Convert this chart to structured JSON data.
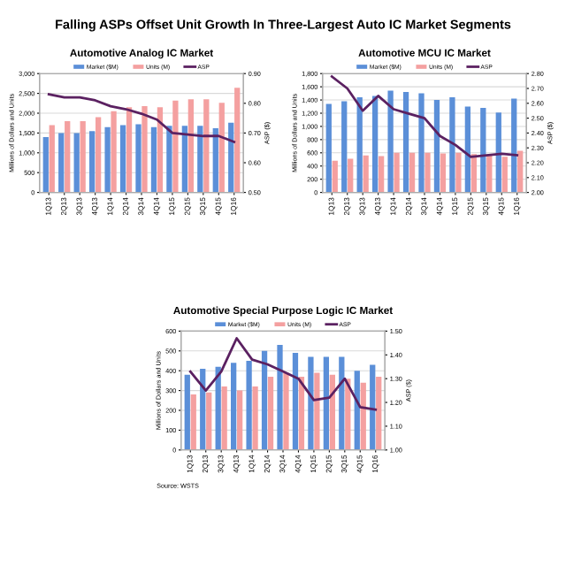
{
  "chart_data": [
    {
      "type": "bar",
      "title": "Automotive Analog IC Market",
      "subtitle": "Falling ASPs Offset Unit Growth In Three-Largest Auto IC Market Segments",
      "ylabel": "Millions of Dollars and Units",
      "y2label": "ASP ($)",
      "categories": [
        "1Q13",
        "2Q13",
        "3Q13",
        "4Q13",
        "1Q14",
        "2Q14",
        "3Q14",
        "4Q14",
        "1Q15",
        "2Q15",
        "3Q15",
        "4Q15",
        "1Q16"
      ],
      "series": [
        {
          "name": "Market ($M)",
          "color": "#5b8fd8",
          "values": [
            1400,
            1500,
            1500,
            1550,
            1650,
            1700,
            1720,
            1650,
            1680,
            1680,
            1680,
            1620,
            1760
          ]
        },
        {
          "name": "Units (M)",
          "color": "#f4a0a0",
          "values": [
            1700,
            1800,
            1800,
            1900,
            2050,
            2150,
            2180,
            2150,
            2320,
            2350,
            2350,
            2260,
            2640
          ]
        },
        {
          "name": "ASP",
          "type": "line",
          "axis": "y2",
          "color": "#5b2161",
          "values": [
            0.83,
            0.82,
            0.82,
            0.81,
            0.79,
            0.78,
            0.765,
            0.745,
            0.7,
            0.695,
            0.69,
            0.69,
            0.67
          ]
        }
      ],
      "ylim": [
        0,
        3000
      ],
      "yticks": [
        {
          "value": 0,
          "label": "0"
        },
        {
          "value": 500,
          "label": "500"
        },
        {
          "value": 1000,
          "label": "1,000"
        },
        {
          "value": 1500,
          "label": "1,500"
        },
        {
          "value": 2000,
          "label": "2,000"
        },
        {
          "value": 2500,
          "label": "2,500"
        },
        {
          "value": 3000,
          "label": "3,000"
        }
      ],
      "y2lim": [
        0.5,
        0.9
      ],
      "y2ticks": [
        {
          "value": 0.5,
          "label": "0.50"
        },
        {
          "value": 0.6,
          "label": "0.60"
        },
        {
          "value": 0.7,
          "label": "0.70"
        },
        {
          "value": 0.8,
          "label": "0.80"
        },
        {
          "value": 0.9,
          "label": "0.90"
        }
      ],
      "grid": "y",
      "legend": "top",
      "marker": "none",
      "line_style": "solid"
    },
    {
      "type": "bar",
      "title": "Automotive MCU IC Market",
      "ylabel": "Millions of Dollars and Units",
      "y2label": "ASP ($)",
      "categories": [
        "1Q13",
        "2Q13",
        "3Q13",
        "4Q13",
        "1Q14",
        "2Q14",
        "3Q14",
        "4Q14",
        "1Q15",
        "2Q15",
        "3Q15",
        "4Q15",
        "1Q16"
      ],
      "series": [
        {
          "name": "Market ($M)",
          "color": "#5b8fd8",
          "values": [
            1340,
            1380,
            1440,
            1460,
            1540,
            1520,
            1500,
            1400,
            1440,
            1300,
            1280,
            1210,
            1420
          ]
        },
        {
          "name": "Units (M)",
          "color": "#f4a0a0",
          "values": [
            480,
            510,
            560,
            550,
            600,
            600,
            600,
            590,
            600,
            580,
            560,
            540,
            630
          ]
        },
        {
          "name": "ASP",
          "type": "line",
          "axis": "y2",
          "color": "#5b2161",
          "values": [
            2.78,
            2.7,
            2.55,
            2.65,
            2.56,
            2.53,
            2.5,
            2.38,
            2.32,
            2.24,
            2.25,
            2.26,
            2.25
          ]
        }
      ],
      "ylim": [
        0,
        1800
      ],
      "yticks": [
        {
          "value": 0,
          "label": "0"
        },
        200,
        400,
        600,
        800,
        {
          "value": 1000,
          "label": "1,000"
        },
        {
          "value": 1200,
          "label": "1,200"
        },
        {
          "value": 1400,
          "label": "1,400"
        },
        {
          "value": 1600,
          "label": "1,600"
        },
        {
          "value": 1800,
          "label": "1,800"
        }
      ],
      "y2lim": [
        2.0,
        2.8
      ],
      "y2ticks": [
        {
          "value": 2.0,
          "label": "2.00"
        },
        {
          "value": 2.1,
          "label": "2.10"
        },
        {
          "value": 2.2,
          "label": "2.20"
        },
        {
          "value": 2.3,
          "label": "2.30"
        },
        {
          "value": 2.4,
          "label": "2.40"
        },
        {
          "value": 2.5,
          "label": "2.50"
        },
        {
          "value": 2.6,
          "label": "2.60"
        },
        {
          "value": 2.7,
          "label": "2.70"
        },
        {
          "value": 2.8,
          "label": "2.80"
        }
      ],
      "grid": "y",
      "legend": "top",
      "marker": "none",
      "line_style": "solid"
    },
    {
      "type": "bar",
      "title": "Automotive Special Purpose Logic IC Market",
      "ylabel": "Millions of Dollars and Units",
      "y2label": "ASP ($)",
      "categories": [
        "1Q13",
        "2Q13",
        "3Q13",
        "4Q13",
        "1Q14",
        "2Q14",
        "3Q14",
        "4Q14",
        "1Q15",
        "2Q15",
        "3Q15",
        "4Q15",
        "1Q16"
      ],
      "series": [
        {
          "name": "Market ($M)",
          "color": "#5b8fd8",
          "values": [
            380,
            410,
            420,
            440,
            450,
            500,
            530,
            490,
            470,
            470,
            470,
            400,
            430
          ]
        },
        {
          "name": "Units (M)",
          "color": "#f4a0a0",
          "values": [
            280,
            290,
            320,
            300,
            320,
            370,
            390,
            370,
            390,
            380,
            360,
            340,
            370
          ]
        },
        {
          "name": "ASP",
          "type": "line",
          "axis": "y2",
          "color": "#5b2161",
          "values": [
            1.33,
            1.25,
            1.33,
            1.47,
            1.38,
            1.36,
            1.33,
            1.3,
            1.21,
            1.22,
            1.3,
            1.18,
            1.17
          ]
        }
      ],
      "ylim": [
        0,
        600
      ],
      "yticks": [
        0,
        100,
        200,
        300,
        400,
        500,
        600
      ],
      "y2lim": [
        1.0,
        1.5
      ],
      "y2ticks": [
        {
          "value": 1.0,
          "label": "1.00"
        },
        {
          "value": 1.1,
          "label": "1.10"
        },
        {
          "value": 1.2,
          "label": "1.20"
        },
        {
          "value": 1.3,
          "label": "1.30"
        },
        {
          "value": 1.4,
          "label": "1.40"
        },
        {
          "value": 1.5,
          "label": "1.50"
        }
      ],
      "grid": "y",
      "legend": "top",
      "marker": "none",
      "line_style": "solid",
      "annotations": [
        "Source: WSTS"
      ]
    }
  ]
}
